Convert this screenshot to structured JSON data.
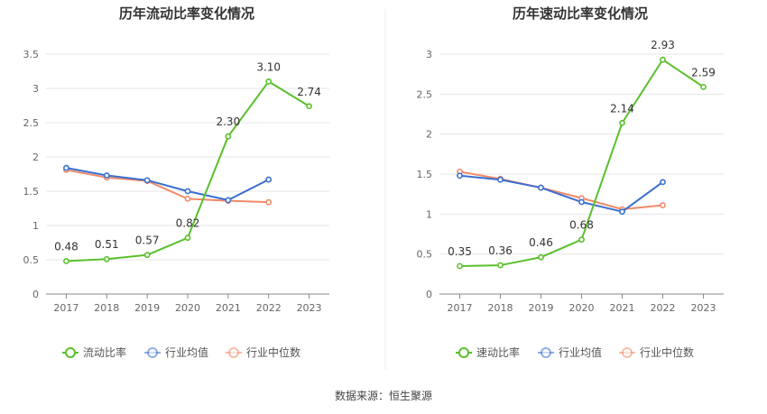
{
  "source": "数据来源：恒生聚源",
  "colors": {
    "company": "#5ac02c",
    "avg": "#3a6fd0",
    "median": "#f08a68",
    "grid": "#e6e6e6",
    "axis": "#888888"
  },
  "chart_data": [
    {
      "type": "line",
      "title": "历年流动比率变化情况",
      "categories": [
        "2017",
        "2018",
        "2019",
        "2020",
        "2021",
        "2022",
        "2023"
      ],
      "ylim": [
        0,
        3.5
      ],
      "yticks": [
        "0",
        "0.5",
        "1",
        "1.5",
        "2",
        "2.5",
        "3",
        "3.5"
      ],
      "grid": true,
      "legend_position": "bottom",
      "series": [
        {
          "name": "流动比率",
          "values": [
            0.48,
            0.51,
            0.57,
            0.82,
            2.3,
            3.1,
            2.74
          ],
          "labels": [
            "0.48",
            "0.51",
            "0.57",
            "0.82",
            "2.30",
            "3.10",
            "2.74"
          ]
        },
        {
          "name": "行业均值",
          "values": [
            1.84,
            1.73,
            1.66,
            1.5,
            1.37,
            1.67,
            null
          ]
        },
        {
          "name": "行业中位数",
          "values": [
            1.81,
            1.7,
            1.65,
            1.39,
            1.36,
            1.34,
            null
          ]
        }
      ]
    },
    {
      "type": "line",
      "title": "历年速动比率变化情况",
      "categories": [
        "2017",
        "2018",
        "2019",
        "2020",
        "2021",
        "2022",
        "2023"
      ],
      "ylim": [
        0,
        3
      ],
      "yticks": [
        "0",
        "0.5",
        "1",
        "1.5",
        "2",
        "2.5",
        "3"
      ],
      "grid": true,
      "legend_position": "bottom",
      "series": [
        {
          "name": "速动比率",
          "values": [
            0.35,
            0.36,
            0.46,
            0.68,
            2.14,
            2.93,
            2.59
          ],
          "labels": [
            "0.35",
            "0.36",
            "0.46",
            "0.68",
            "2.14",
            "2.93",
            "2.59"
          ]
        },
        {
          "name": "行业均值",
          "values": [
            1.48,
            1.43,
            1.33,
            1.15,
            1.03,
            1.4,
            null
          ]
        },
        {
          "name": "行业中位数",
          "values": [
            1.53,
            1.44,
            1.33,
            1.2,
            1.06,
            1.11,
            null
          ]
        }
      ]
    }
  ]
}
